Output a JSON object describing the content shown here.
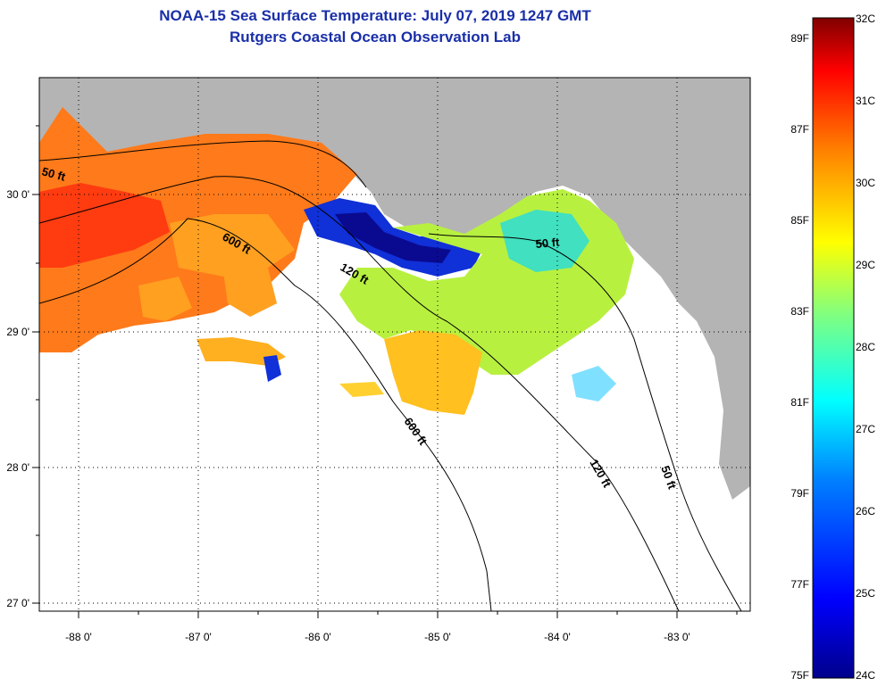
{
  "header": {
    "title": "NOAA-15 Sea Surface Temperature:  July 07, 2019 1247 GMT",
    "subtitle": "Rutgers Coastal Ocean Observation Lab"
  },
  "axes": {
    "longitude_labels": [
      "-88 0'",
      "-87 0'",
      "-86 0'",
      "-85 0'",
      "-84 0'",
      "-83 0'"
    ],
    "latitude_labels": [
      "30 0'",
      "29 0'",
      "28 0'",
      "27 0'"
    ]
  },
  "depth_contours": [
    "50 ft",
    "600 ft",
    "120 ft",
    "50 ft",
    "600 ft",
    "120 ft",
    "50 ft"
  ],
  "colorbar": {
    "celsius": [
      "32C",
      "31C",
      "30C",
      "29C",
      "28C",
      "27C",
      "26C",
      "25C",
      "24C"
    ],
    "fahrenheit": [
      "89F",
      "87F",
      "85F",
      "83F",
      "81F",
      "79F",
      "77F",
      "75F"
    ],
    "colors": [
      "#00008b",
      "#0000ff",
      "#0080ff",
      "#00ffff",
      "#80ff80",
      "#ffff00",
      "#ff8000",
      "#ff0000",
      "#800000"
    ]
  },
  "colors": {
    "land": "#b4b4b4",
    "no_data": "#ffffff",
    "title_text": "#1a2fa8"
  }
}
